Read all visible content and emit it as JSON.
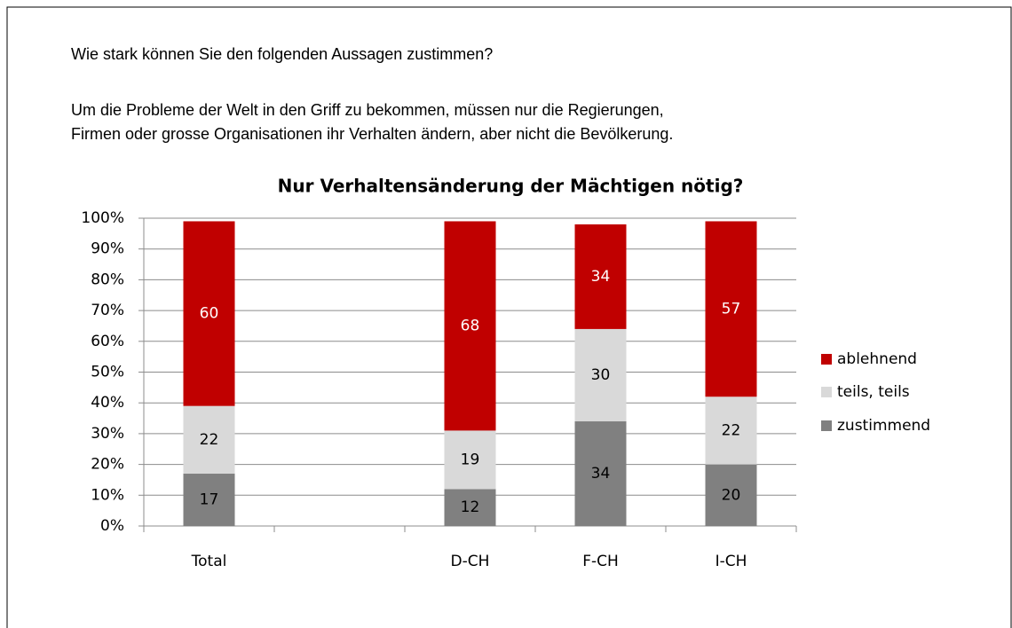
{
  "question": "Wie stark können Sie den folgenden Aussagen zustimmen?",
  "statement": [
    "Um die Probleme der Welt in den Griff zu bekommen, müssen nur die Regierungen,",
    "Firmen oder grosse Organisationen ihr Verhalten ändern, aber nicht die Bevölkerung."
  ],
  "chart_data": {
    "type": "stacked_bar",
    "title": "Nur Verhaltensänderung der Mächtigen nötig?",
    "categories": [
      "Total",
      null,
      "D-CH",
      "F-CH",
      "I-CH"
    ],
    "series": [
      {
        "name": "zustimmend",
        "color": "#808080",
        "values": [
          17,
          null,
          12,
          34,
          20
        ]
      },
      {
        "name": "teils, teils",
        "color": "#d9d9d9",
        "values": [
          22,
          null,
          19,
          30,
          22
        ]
      },
      {
        "name": "ablehnend",
        "color": "#c00000",
        "values": [
          60,
          null,
          68,
          34,
          57
        ]
      }
    ],
    "ylim": [
      0,
      100
    ],
    "yticks": [
      {
        "value": 0,
        "label": "0%"
      },
      {
        "value": 10,
        "label": "10%"
      },
      {
        "value": 20,
        "label": "20%"
      },
      {
        "value": 30,
        "label": "30%"
      },
      {
        "value": 40,
        "label": "40%"
      },
      {
        "value": 50,
        "label": "50%"
      },
      {
        "value": 60,
        "label": "60%"
      },
      {
        "value": 70,
        "label": "70%"
      },
      {
        "value": 80,
        "label": "80%"
      },
      {
        "value": 90,
        "label": "90%"
      },
      {
        "value": 100,
        "label": "100%"
      }
    ],
    "grid": true,
    "legend": "right"
  }
}
